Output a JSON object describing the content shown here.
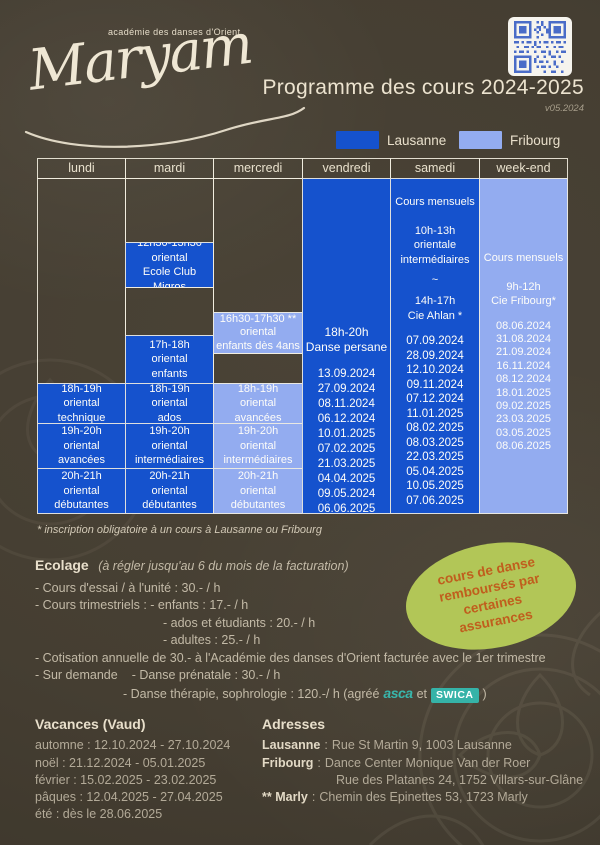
{
  "colors": {
    "lausanne_blue": "#1552cd",
    "fribourg_blue": "#93acf0",
    "badge_bg": "#b2c657",
    "badge_text": "#c05e1d",
    "asca_teal": "#38b6ab",
    "swica_teal": "#35b3a8",
    "cream_text": "#e9e1cd"
  },
  "logo": {
    "name": "Maryam",
    "subtitle": "académie des danses d'Orient"
  },
  "header": {
    "title": "Programme des cours 2024-2025",
    "version": "v05.2024"
  },
  "legend": {
    "lausanne": "Lausanne",
    "fribourg": "Fribourg"
  },
  "schedule": {
    "days": [
      "lundi",
      "mardi",
      "mercredi",
      "vendredi",
      "samedi",
      "week-end"
    ],
    "mardi_migros": [
      "12h30-13h30",
      "oriental",
      "Ecole Club Migros"
    ],
    "mardi_enfants": [
      "17h-18h",
      "oriental",
      "enfants"
    ],
    "mercredi_enfants": [
      "16h30-17h30 **",
      "oriental",
      "enfants dès 4ans"
    ],
    "lundi_18": [
      "18h-19h",
      "oriental",
      "technique"
    ],
    "lundi_19": [
      "19h-20h",
      "oriental",
      "avancées"
    ],
    "lundi_20": [
      "20h-21h",
      "oriental",
      "débutantes"
    ],
    "mardi_18": [
      "18h-19h",
      "oriental",
      "ados"
    ],
    "mardi_19": [
      "19h-20h",
      "oriental",
      "intermédiaires"
    ],
    "mardi_20": [
      "20h-21h",
      "oriental",
      "débutantes"
    ],
    "mercredi_18": [
      "18h-19h",
      "oriental",
      "avancées"
    ],
    "mercredi_19": [
      "19h-20h",
      "oriental",
      "intermédiaires"
    ],
    "mercredi_20": [
      "20h-21h",
      "oriental",
      "débutantes"
    ],
    "vendredi": {
      "course": [
        "18h-20h",
        "Danse persane"
      ],
      "dates": [
        "13.09.2024",
        "27.09.2024",
        "08.11.2024",
        "06.12.2024",
        "10.01.2025",
        "07.02.2025",
        "21.03.2025",
        "04.04.2025",
        "09.05.2024",
        "06.06.2025"
      ]
    },
    "samedi": {
      "mensuels": "Cours mensuels",
      "bloc1": [
        "10h-13h",
        "orientale",
        "intermédiaires"
      ],
      "tilde": "~",
      "bloc2": [
        "14h-17h",
        "Cie Ahlan *"
      ],
      "dates": [
        "07.09.2024",
        "28.09.2024",
        "12.10.2024",
        "09.11.2024",
        "07.12.2024",
        "11.01.2025",
        "08.02.2025",
        "08.03.2025",
        "22.03.2025",
        "05.04.2025",
        "10.05.2025",
        "07.06.2025"
      ]
    },
    "weekend": {
      "mensuels": "Cours mensuels",
      "bloc1": [
        "9h-12h",
        "Cie Fribourg*"
      ],
      "dates": [
        "08.06.2024",
        "31.08.2024",
        "21.09.2024",
        "16.11.2024",
        "08.12.2024",
        "18.01.2025",
        "09.02.2025",
        "23.03.2025",
        "03.05.2025",
        "08.06.2025"
      ]
    }
  },
  "footnote": "* inscription obligatoire à un cours à Lausanne ou Fribourg",
  "ecolage": {
    "heading": "Ecolage",
    "note": "(à régler jusqu'au 6 du mois de la facturation)",
    "line1": "- Cours d'essai / à l'unité : 30.- / h",
    "line2": "- Cours trimestriels : - enfants : 17.- / h",
    "line3": "- ados et étudiants : 20.- / h",
    "line4": "- adultes : 25.- / h",
    "line5": "- Cotisation annuelle de 30.- à l'Académie des danses d'Orient facturée avec le 1er trimestre",
    "line6a": "- Sur demande",
    "line6b": "- Danse prénatale : 30.- / h",
    "line7a": "- Danse thérapie, sophrologie : 120.-/ h (agréé",
    "asca": "asca",
    "line7b": "et",
    "swica": "SWICA",
    "line7c": ")"
  },
  "badge": {
    "lines": [
      "cours de danse",
      "remboursés par",
      "certaines",
      "assurances"
    ]
  },
  "vacances": {
    "heading": "Vacances (Vaud)",
    "items": [
      "automne : 12.10.2024 - 27.10.2024",
      "noël : 21.12.2024 - 05.01.2025",
      "février : 15.02.2025 - 23.02.2025",
      "pâques : 12.04.2025 - 27.04.2025",
      "été : dès le 28.06.2025"
    ]
  },
  "adresses": {
    "heading": "Adresses",
    "sep": ":",
    "lausanne_label": "Lausanne",
    "lausanne_value": "Rue St Martin 9, 1003 Lausanne",
    "fribourg_label": "Fribourg",
    "fribourg_value": "Dance Center Monique Van der Roer",
    "fribourg_value2": "Rue des Platanes 24, 1752 Villars-sur-Glâne",
    "marly_label": "** Marly",
    "marly_value": "Chemin des Epinettes 53, 1723 Marly"
  }
}
